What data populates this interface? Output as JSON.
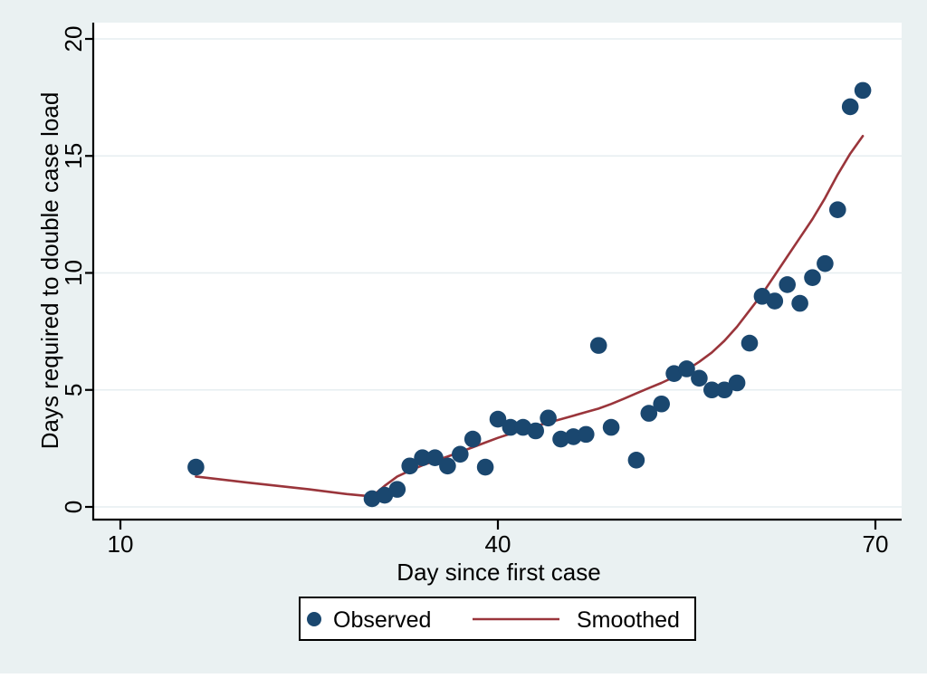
{
  "chart_data": {
    "type": "scatter",
    "title": "",
    "xlabel": "Day since first case",
    "ylabel": "Days required to double case load",
    "xlim": [
      7.8,
      72.1
    ],
    "ylim": [
      -0.5,
      20.7
    ],
    "xticks": [
      10,
      40,
      70
    ],
    "yticks": [
      0,
      5,
      10,
      15,
      20
    ],
    "grid": "horizontal-only",
    "legend_position": "bottom-center",
    "series": [
      {
        "name": "Observed",
        "type": "scatter",
        "color": "#1a476f",
        "points": [
          [
            16,
            1.7
          ],
          [
            30,
            0.35
          ],
          [
            31,
            0.5
          ],
          [
            32,
            0.75
          ],
          [
            33,
            1.75
          ],
          [
            34,
            2.1
          ],
          [
            35,
            2.1
          ],
          [
            36,
            1.75
          ],
          [
            37,
            2.25
          ],
          [
            38,
            2.9
          ],
          [
            39,
            1.7
          ],
          [
            40,
            3.75
          ],
          [
            41,
            3.4
          ],
          [
            42,
            3.4
          ],
          [
            43,
            3.25
          ],
          [
            44,
            3.8
          ],
          [
            45,
            2.9
          ],
          [
            46,
            3.0
          ],
          [
            47,
            3.1
          ],
          [
            48,
            6.9
          ],
          [
            49,
            3.4
          ],
          [
            51,
            2.0
          ],
          [
            52,
            4.0
          ],
          [
            53,
            4.4
          ],
          [
            54,
            5.7
          ],
          [
            55,
            5.9
          ],
          [
            56,
            5.5
          ],
          [
            57,
            5.0
          ],
          [
            58,
            5.0
          ],
          [
            59,
            5.3
          ],
          [
            60,
            7.0
          ],
          [
            61,
            9.0
          ],
          [
            62,
            8.8
          ],
          [
            63,
            9.5
          ],
          [
            64,
            8.7
          ],
          [
            65,
            9.8
          ],
          [
            66,
            10.4
          ],
          [
            67,
            12.7
          ],
          [
            68,
            17.1
          ],
          [
            69,
            17.8
          ]
        ]
      },
      {
        "name": "Smoothed",
        "type": "line",
        "color": "#9a353b",
        "points": [
          [
            16,
            1.3
          ],
          [
            20,
            1.05
          ],
          [
            25,
            0.75
          ],
          [
            28,
            0.55
          ],
          [
            30,
            0.45
          ],
          [
            31,
            0.9
          ],
          [
            32,
            1.3
          ],
          [
            33,
            1.55
          ],
          [
            34,
            1.78
          ],
          [
            35,
            1.97
          ],
          [
            36,
            2.15
          ],
          [
            37,
            2.35
          ],
          [
            38,
            2.55
          ],
          [
            39,
            2.75
          ],
          [
            40,
            2.95
          ],
          [
            41,
            3.13
          ],
          [
            42,
            3.3
          ],
          [
            43,
            3.45
          ],
          [
            44,
            3.6
          ],
          [
            45,
            3.75
          ],
          [
            46,
            3.9
          ],
          [
            47,
            4.05
          ],
          [
            48,
            4.2
          ],
          [
            49,
            4.4
          ],
          [
            50,
            4.62
          ],
          [
            51,
            4.85
          ],
          [
            52,
            5.08
          ],
          [
            53,
            5.3
          ],
          [
            54,
            5.55
          ],
          [
            55,
            5.85
          ],
          [
            56,
            6.2
          ],
          [
            57,
            6.6
          ],
          [
            58,
            7.1
          ],
          [
            59,
            7.7
          ],
          [
            60,
            8.4
          ],
          [
            61,
            9.1
          ],
          [
            62,
            9.9
          ],
          [
            63,
            10.7
          ],
          [
            64,
            11.5
          ],
          [
            65,
            12.3
          ],
          [
            66,
            13.2
          ],
          [
            67,
            14.2
          ],
          [
            68,
            15.1
          ],
          [
            69,
            15.85
          ]
        ]
      }
    ]
  },
  "axes": {
    "x_title": "Day since first case",
    "y_title": "Days required to double case load",
    "x_tick_labels": [
      "10",
      "40",
      "70"
    ],
    "y_tick_labels": [
      "0",
      "5",
      "10",
      "15",
      "20"
    ]
  },
  "legend": {
    "observed_label": "Observed",
    "smoothed_label": "Smoothed"
  },
  "colors": {
    "background": "#eaf1f2",
    "plot_background": "#ffffff",
    "gridline": "#e6eef0",
    "axis": "#000000",
    "observed_marker": "#1a476f",
    "smoothed_line": "#9a353b",
    "legend_border": "#000000",
    "legend_background": "#ffffff"
  }
}
